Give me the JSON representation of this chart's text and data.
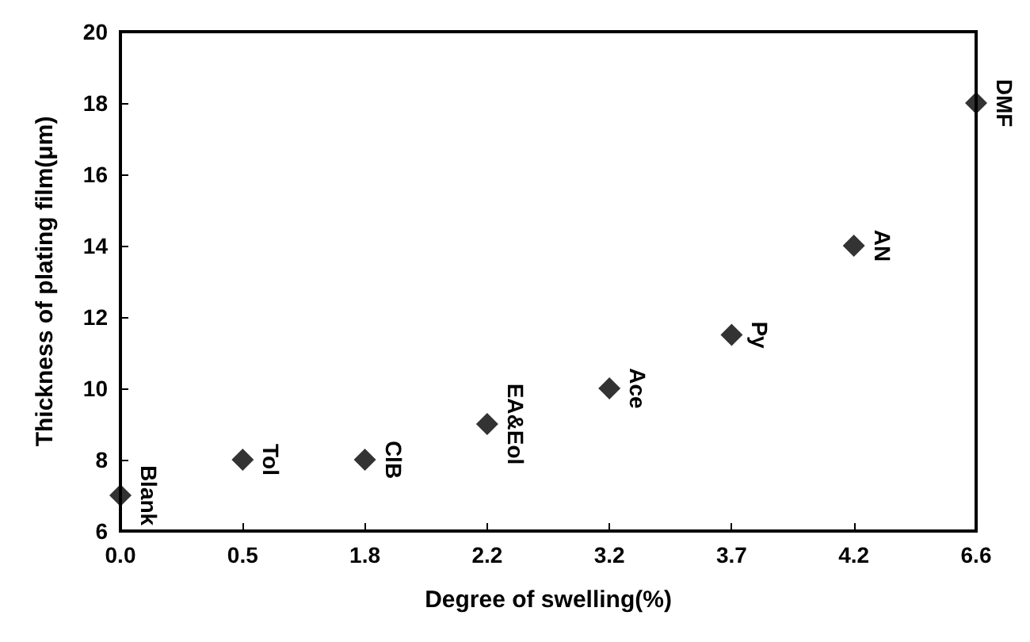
{
  "chart_data": {
    "type": "scatter",
    "xlabel": "Degree of swelling(%)",
    "ylabel": "Thickness of plating film(μm)",
    "categories": [
      "0.0",
      "0.5",
      "1.8",
      "2.2",
      "3.2",
      "3.7",
      "4.2",
      "6.6"
    ],
    "series": [
      {
        "color": "#000000",
        "values": [
          7,
          8,
          8,
          9,
          10,
          11.5,
          14,
          18
        ]
      }
    ],
    "ylim": [
      6,
      20
    ],
    "yticks": [
      6,
      8,
      10,
      12,
      14,
      16,
      18,
      20
    ],
    "grid": false,
    "marker": "diamond",
    "annotations": [
      {
        "text": "Blank",
        "x": "0.0",
        "y": 7
      },
      {
        "text": "Tol",
        "x": "0.5",
        "y": 8
      },
      {
        "text": "ClB",
        "x": "1.8",
        "y": 8
      },
      {
        "text": "EA&Eol",
        "x": "2.2",
        "y": 9
      },
      {
        "text": "Ace",
        "x": "3.2",
        "y": 10
      },
      {
        "text": "Py",
        "x": "3.7",
        "y": 11.5
      },
      {
        "text": "AN",
        "x": "4.2",
        "y": 14
      },
      {
        "text": "DMF",
        "x": "6.6",
        "y": 18
      }
    ]
  }
}
